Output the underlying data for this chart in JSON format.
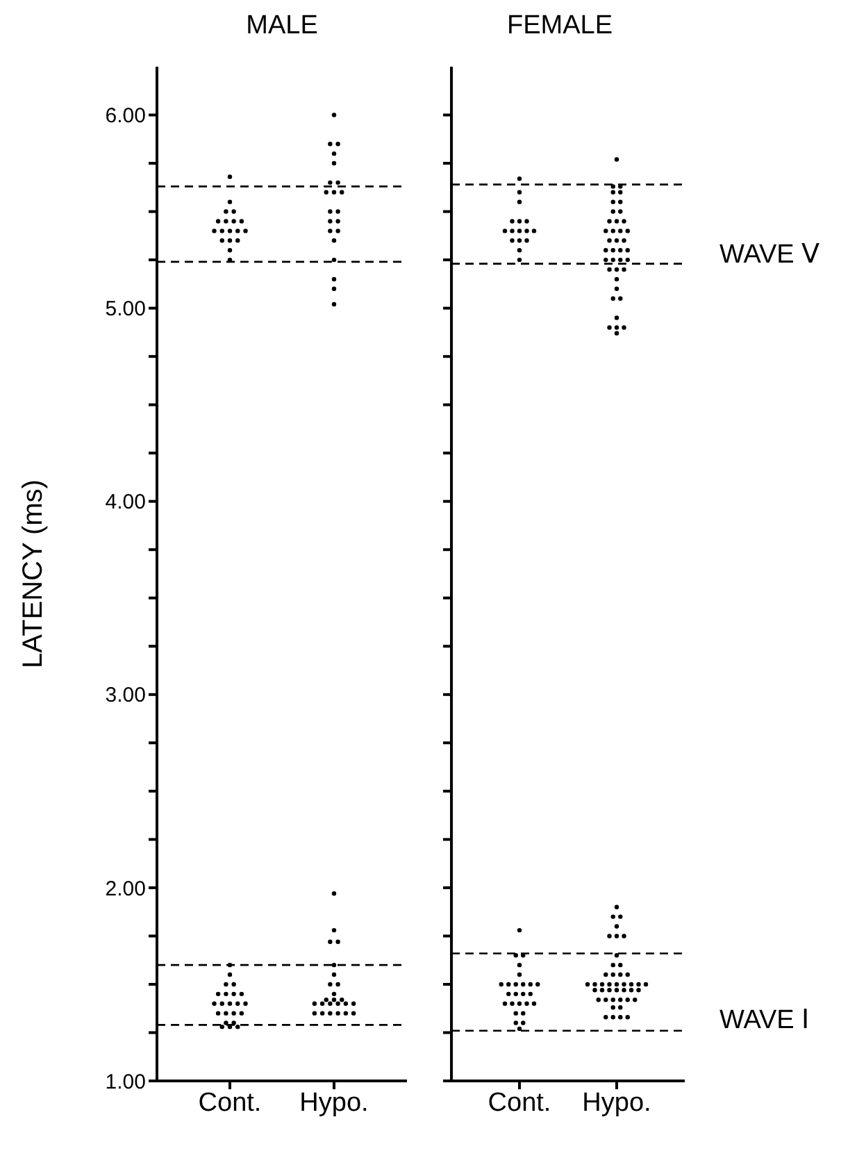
{
  "chart_data": [
    {
      "type": "scatter",
      "title": "MALE",
      "ylabel": "LATENCY (ms)",
      "categories": [
        "Cont.",
        "Hypo."
      ],
      "ylim": [
        1,
        6.25
      ],
      "yticks": [
        {
          "value": 1,
          "label": "1.00"
        },
        {
          "value": 1.25,
          "label": null
        },
        {
          "value": 1.5,
          "label": null
        },
        {
          "value": 1.75,
          "label": null
        },
        {
          "value": 2,
          "label": "2.00"
        },
        {
          "value": 2.25,
          "label": null
        },
        {
          "value": 2.5,
          "label": null
        },
        {
          "value": 2.75,
          "label": null
        },
        {
          "value": 3,
          "label": "3.00"
        },
        {
          "value": 3.25,
          "label": null
        },
        {
          "value": 3.5,
          "label": null
        },
        {
          "value": 3.75,
          "label": null
        },
        {
          "value": 4,
          "label": "4.00"
        },
        {
          "value": 4.25,
          "label": null
        },
        {
          "value": 4.5,
          "label": null
        },
        {
          "value": 4.75,
          "label": null
        },
        {
          "value": 5,
          "label": "5.00"
        },
        {
          "value": 5.25,
          "label": null
        },
        {
          "value": 5.5,
          "label": null
        },
        {
          "value": 5.75,
          "label": null
        },
        {
          "value": 6,
          "label": "6.00"
        }
      ],
      "marker": "circle",
      "grid": false,
      "legend": false,
      "series": [
        {
          "color": "#000000",
          "x": [
            "Cont.",
            "Cont.",
            "Cont.",
            "Cont.",
            "Cont.",
            "Cont.",
            "Cont.",
            "Cont.",
            "Cont.",
            "Cont.",
            "Cont.",
            "Cont.",
            "Cont.",
            "Cont.",
            "Cont.",
            "Cont.",
            "Cont.",
            "Cont.",
            "Cont.",
            "Cont.",
            "Cont.",
            "Cont.",
            "Cont.",
            "Cont.",
            "Cont.",
            "Cont.",
            "Cont.",
            "Cont.",
            "Cont.",
            "Cont.",
            "Cont.",
            "Cont."
          ],
          "values": [
            5.68,
            5.55,
            5.5,
            5.5,
            5.45,
            5.45,
            5.45,
            5.45,
            5.4,
            5.4,
            5.4,
            5.4,
            5.4,
            5.35,
            5.35,
            5.35,
            5.3,
            5.25,
            1.6,
            1.55,
            1.5,
            1.5,
            1.45,
            1.45,
            1.45,
            1.45,
            1.4,
            1.4,
            1.4,
            1.4,
            1.4,
            1.35
          ]
        },
        {
          "color": "#000000",
          "x": [
            "Cont.",
            "Cont.",
            "Cont.",
            "Cont.",
            "Cont.",
            "Cont.",
            "Cont.",
            "Cont."
          ],
          "values": [
            1.35,
            1.35,
            1.35,
            1.3,
            1.3,
            1.28,
            1.28,
            1.28
          ]
        },
        {
          "color": "#000000",
          "x": [
            "Hypo.",
            "Hypo.",
            "Hypo.",
            "Hypo.",
            "Hypo.",
            "Hypo.",
            "Hypo.",
            "Hypo.",
            "Hypo.",
            "Hypo.",
            "Hypo.",
            "Hypo.",
            "Hypo.",
            "Hypo.",
            "Hypo.",
            "Hypo.",
            "Hypo.",
            "Hypo.",
            "Hypo.",
            "Hypo.",
            "Hypo.",
            "Hypo.",
            "Hypo.",
            "Hypo.",
            "Hypo.",
            "Hypo.",
            "Hypo.",
            "Hypo.",
            "Hypo.",
            "Hypo.",
            "Hypo.",
            "Hypo.",
            "Hypo.",
            "Hypo.",
            "Hypo.",
            "Hypo.",
            "Hypo.",
            "Hypo.",
            "Hypo.",
            "Hypo.",
            "Hypo.",
            "Hypo.",
            "Hypo."
          ],
          "values": [
            6.0,
            5.85,
            5.85,
            5.8,
            5.75,
            5.65,
            5.65,
            5.6,
            5.6,
            5.6,
            5.5,
            5.5,
            5.45,
            5.45,
            5.4,
            5.4,
            5.35,
            5.25,
            5.15,
            5.1,
            5.02,
            1.97,
            1.78,
            1.72,
            1.72,
            1.6,
            1.55,
            1.5,
            1.5,
            1.45,
            1.42,
            1.42,
            1.42,
            1.4,
            1.4,
            1.4,
            1.4,
            1.4,
            1.4,
            1.35,
            1.35,
            1.35,
            1.35
          ]
        },
        {
          "color": "#000000",
          "x": [
            "Hypo.",
            "Hypo."
          ],
          "values": [
            1.35,
            1.35
          ]
        }
      ],
      "ref_lines": [
        {
          "axis": "y",
          "value": 5.63,
          "line_style": "dashed",
          "color": "#000000"
        },
        {
          "axis": "y",
          "value": 5.24,
          "line_style": "dashed",
          "color": "#000000"
        },
        {
          "axis": "y",
          "value": 1.6,
          "line_style": "dashed",
          "color": "#000000"
        },
        {
          "axis": "y",
          "value": 1.29,
          "line_style": "dashed",
          "color": "#000000"
        }
      ]
    },
    {
      "type": "scatter",
      "title": "FEMALE",
      "categories": [
        "Cont.",
        "Hypo."
      ],
      "ylim": [
        1,
        6.25
      ],
      "yticks": [
        {
          "value": 1,
          "label": null
        },
        {
          "value": 1.25,
          "label": null
        },
        {
          "value": 1.5,
          "label": null
        },
        {
          "value": 1.75,
          "label": null
        },
        {
          "value": 2,
          "label": null
        },
        {
          "value": 2.25,
          "label": null
        },
        {
          "value": 2.5,
          "label": null
        },
        {
          "value": 2.75,
          "label": null
        },
        {
          "value": 3,
          "label": null
        },
        {
          "value": 3.25,
          "label": null
        },
        {
          "value": 3.5,
          "label": null
        },
        {
          "value": 3.75,
          "label": null
        },
        {
          "value": 4,
          "label": null
        },
        {
          "value": 4.25,
          "label": null
        },
        {
          "value": 4.5,
          "label": null
        },
        {
          "value": 4.75,
          "label": null
        },
        {
          "value": 5,
          "label": null
        },
        {
          "value": 5.25,
          "label": null
        },
        {
          "value": 5.5,
          "label": null
        },
        {
          "value": 5.75,
          "label": null
        },
        {
          "value": 6,
          "label": null
        }
      ],
      "tick_labels": "x",
      "marker": "circle",
      "grid": false,
      "legend": false,
      "series": [
        {
          "color": "#000000",
          "x": [
            "Cont.",
            "Cont.",
            "Cont.",
            "Cont.",
            "Cont.",
            "Cont.",
            "Cont.",
            "Cont.",
            "Cont.",
            "Cont.",
            "Cont.",
            "Cont.",
            "Cont.",
            "Cont.",
            "Cont.",
            "Cont."
          ],
          "values": [
            5.67,
            5.6,
            5.55,
            5.45,
            5.45,
            5.45,
            5.4,
            5.4,
            5.4,
            5.4,
            5.4,
            5.35,
            5.35,
            5.35,
            5.3,
            5.25
          ]
        },
        {
          "color": "#000000",
          "x": [
            "Cont.",
            "Cont.",
            "Cont.",
            "Cont.",
            "Cont.",
            "Cont.",
            "Cont.",
            "Cont.",
            "Cont.",
            "Cont.",
            "Cont.",
            "Cont.",
            "Cont.",
            "Cont.",
            "Cont.",
            "Cont.",
            "Cont.",
            "Cont.",
            "Cont.",
            "Cont.",
            "Cont.",
            "Cont.",
            "Cont.",
            "Cont.",
            "Cont."
          ],
          "values": [
            1.78,
            1.65,
            1.65,
            1.6,
            1.55,
            1.5,
            1.5,
            1.5,
            1.5,
            1.5,
            1.5,
            1.45,
            1.45,
            1.45,
            1.45,
            1.4,
            1.4,
            1.4,
            1.4,
            1.4,
            1.35,
            1.35,
            1.3,
            1.3,
            1.27
          ]
        },
        {
          "color": "#000000",
          "x": [
            "Hypo.",
            "Hypo.",
            "Hypo.",
            "Hypo.",
            "Hypo.",
            "Hypo.",
            "Hypo.",
            "Hypo.",
            "Hypo.",
            "Hypo.",
            "Hypo.",
            "Hypo.",
            "Hypo.",
            "Hypo.",
            "Hypo.",
            "Hypo.",
            "Hypo.",
            "Hypo.",
            "Hypo.",
            "Hypo.",
            "Hypo.",
            "Hypo.",
            "Hypo.",
            "Hypo.",
            "Hypo.",
            "Hypo.",
            "Hypo.",
            "Hypo.",
            "Hypo.",
            "Hypo.",
            "Hypo.",
            "Hypo.",
            "Hypo.",
            "Hypo.",
            "Hypo.",
            "Hypo.",
            "Hypo.",
            "Hypo.",
            "Hypo.",
            "Hypo."
          ],
          "values": [
            5.77,
            5.63,
            5.63,
            5.6,
            5.6,
            5.55,
            5.55,
            5.5,
            5.5,
            5.45,
            5.45,
            5.45,
            5.4,
            5.4,
            5.4,
            5.4,
            5.35,
            5.35,
            5.35,
            5.3,
            5.3,
            5.3,
            5.3,
            5.25,
            5.25,
            5.25,
            5.25,
            5.2,
            5.2,
            5.2,
            5.15,
            5.1,
            5.05,
            5.05,
            4.95,
            4.9,
            4.9,
            4.9,
            4.87,
            1.9
          ]
        },
        {
          "color": "#000000",
          "x": [
            "Hypo.",
            "Hypo.",
            "Hypo.",
            "Hypo.",
            "Hypo.",
            "Hypo.",
            "Hypo.",
            "Hypo.",
            "Hypo.",
            "Hypo.",
            "Hypo.",
            "Hypo.",
            "Hypo.",
            "Hypo.",
            "Hypo.",
            "Hypo.",
            "Hypo.",
            "Hypo.",
            "Hypo.",
            "Hypo.",
            "Hypo.",
            "Hypo.",
            "Hypo.",
            "Hypo.",
            "Hypo.",
            "Hypo.",
            "Hypo.",
            "Hypo.",
            "Hypo.",
            "Hypo.",
            "Hypo.",
            "Hypo.",
            "Hypo.",
            "Hypo.",
            "Hypo.",
            "Hypo.",
            "Hypo.",
            "Hypo.",
            "Hypo.",
            "Hypo.",
            "Hypo."
          ],
          "values": [
            1.85,
            1.85,
            1.8,
            1.75,
            1.75,
            1.75,
            1.65,
            1.6,
            1.6,
            1.55,
            1.55,
            1.55,
            1.55,
            1.5,
            1.5,
            1.5,
            1.5,
            1.5,
            1.5,
            1.5,
            1.5,
            1.5,
            1.47,
            1.47,
            1.47,
            1.47,
            1.47,
            1.47,
            1.47,
            1.42,
            1.42,
            1.42,
            1.42,
            1.42,
            1.42,
            1.38,
            1.38,
            1.33,
            1.33,
            1.33,
            1.33
          ]
        }
      ],
      "ref_lines": [
        {
          "axis": "y",
          "value": 5.64,
          "line_style": "dashed",
          "color": "#000000"
        },
        {
          "axis": "y",
          "value": 5.23,
          "line_style": "dashed",
          "color": "#000000"
        },
        {
          "axis": "y",
          "value": 1.66,
          "line_style": "dashed",
          "color": "#000000"
        },
        {
          "axis": "y",
          "value": 1.26,
          "line_style": "dashed",
          "color": "#000000"
        }
      ],
      "annotations": [
        "WAVE Ⅴ",
        "WAVE Ⅰ"
      ]
    }
  ]
}
